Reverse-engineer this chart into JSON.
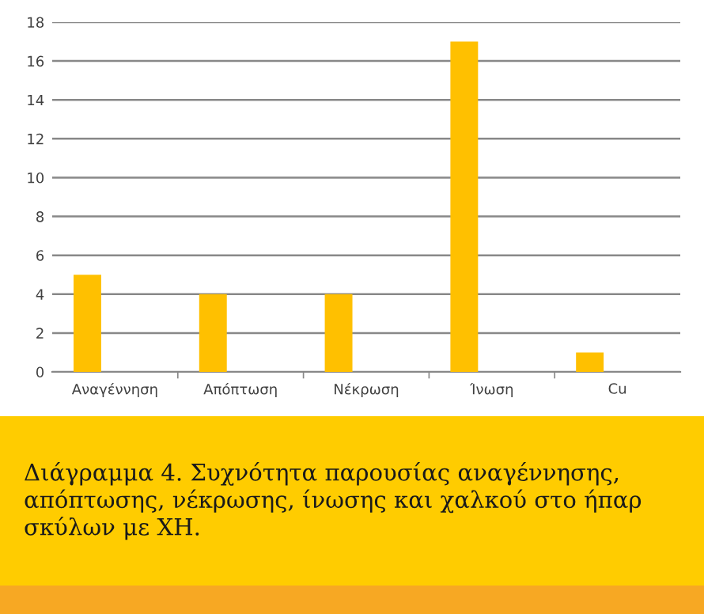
{
  "chart_data": {
    "type": "bar",
    "categories": [
      "Αναγέννηση",
      "Απόπτωση",
      "Νέκρωση",
      "Ίνωση",
      "Cu"
    ],
    "values": [
      5,
      4,
      4,
      17,
      1
    ],
    "color": "#ffc000",
    "ylim": [
      0,
      18
    ],
    "yticks": [
      0,
      2,
      4,
      6,
      8,
      10,
      12,
      14,
      16,
      18
    ],
    "grid": "y",
    "annotations": [
      "Διάγραμμα 4. Συχνότητα παρουσίας αναγέννησης, απόπτωσης, νέκρωσης, ίνωσης και χαλκού στο ήπαρ σκύλων με ΧΗ."
    ]
  }
}
